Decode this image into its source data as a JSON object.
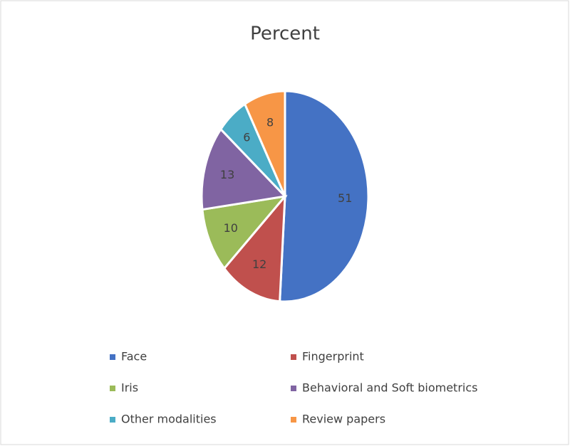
{
  "chart_data": {
    "type": "pie",
    "title": "Percent",
    "categories": [
      "Face",
      "Fingerprint",
      "Iris",
      "Behavioral and Soft biometrics",
      "Other modalities",
      "Review papers"
    ],
    "values": [
      51,
      12,
      10,
      13,
      6,
      8
    ],
    "colors": [
      "#4472c4",
      "#c0504d",
      "#9bbb59",
      "#8064a2",
      "#4bacc6",
      "#f79646"
    ],
    "legend": "bottom"
  }
}
